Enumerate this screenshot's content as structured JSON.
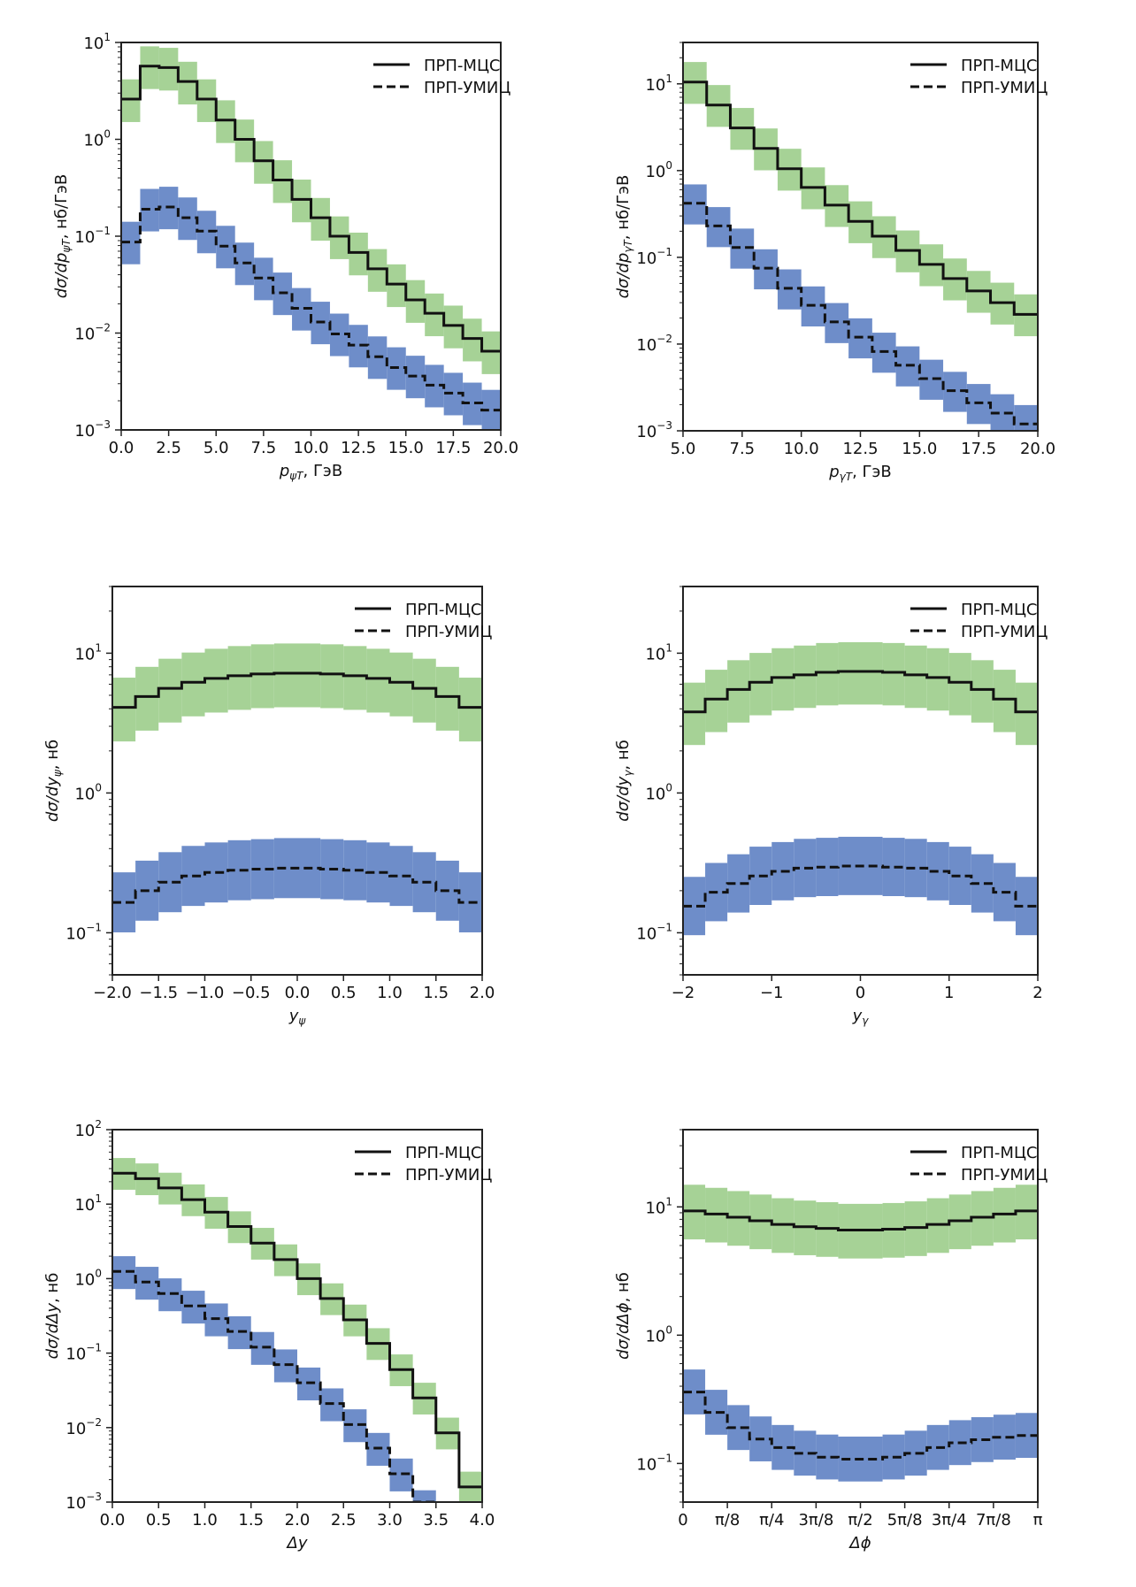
{
  "figure": {
    "legend_labels": [
      "ПРП-МЦС",
      "ПРП-УМИЦ"
    ],
    "colors": {
      "mcs_band": "#a6d296",
      "umic_band": "#6e8dc9",
      "line": "#111111"
    }
  },
  "chart_data": [
    {
      "id": "pt-psi",
      "type": "area",
      "subtype": "step-histogram-with-bands",
      "xlabel": "p_ψT, ГэВ",
      "xlabel_main": "p",
      "xlabel_sub": "ψT",
      "xlabel_unit": ", ГэВ",
      "ylabel": "dσ/dp_ψT, нб/ГэВ",
      "ylabel_main": "dσ/dp",
      "ylabel_sub": "ψT",
      "ylabel_unit": ", нб/ГэВ",
      "xlim": [
        0,
        20
      ],
      "ylim": [
        0.001,
        10
      ],
      "yscale": "log",
      "xticks": [
        0,
        2.5,
        5,
        7.5,
        10,
        12.5,
        15,
        17.5,
        20
      ],
      "xtick_labels": [
        "0.0",
        "2.5",
        "5.0",
        "7.5",
        "10.0",
        "12.5",
        "15.0",
        "17.5",
        "20.0"
      ],
      "yticks_exp": [
        -3,
        -2,
        -1,
        0,
        1
      ],
      "legend": "top-right",
      "bin_edges": [
        0,
        1,
        2,
        3,
        4,
        5,
        6,
        7,
        8,
        9,
        10,
        11,
        12,
        13,
        14,
        15,
        16,
        17,
        18,
        19,
        20
      ],
      "series": [
        {
          "name": "ПРП-МЦС",
          "style": "solid",
          "band": "green",
          "values": [
            2.6,
            5.7,
            5.5,
            3.95,
            2.6,
            1.58,
            1.0,
            0.6,
            0.38,
            0.24,
            0.155,
            0.1,
            0.068,
            0.046,
            0.032,
            0.022,
            0.016,
            0.012,
            0.0088,
            0.0065
          ],
          "band_upper_factor": 1.6,
          "band_lower_factor": 0.58
        },
        {
          "name": "ПРП-УМИЦ",
          "style": "dashed",
          "band": "blue",
          "values": [
            0.087,
            0.19,
            0.2,
            0.155,
            0.113,
            0.079,
            0.053,
            0.037,
            0.026,
            0.018,
            0.013,
            0.0098,
            0.0075,
            0.0057,
            0.0044,
            0.0036,
            0.0029,
            0.0024,
            0.0019,
            0.0016
          ],
          "band_upper_factor": 1.62,
          "band_lower_factor": 0.59
        }
      ]
    },
    {
      "id": "pt-gamma",
      "type": "area",
      "subtype": "step-histogram-with-bands",
      "xlabel": "p_γT, ГэВ",
      "xlabel_main": "p",
      "xlabel_sub": "γT",
      "xlabel_unit": ", ГэВ",
      "ylabel": "dσ/dp_γT, нб/ГэВ",
      "ylabel_main": "dσ/dp",
      "ylabel_sub": "γT",
      "ylabel_unit": ", нб/ГэВ",
      "xlim": [
        5,
        20
      ],
      "ylim": [
        0.001,
        30
      ],
      "yscale": "log",
      "xticks": [
        5,
        7.5,
        10,
        12.5,
        15,
        17.5,
        20
      ],
      "xtick_labels": [
        "5.0",
        "7.5",
        "10.0",
        "12.5",
        "15.0",
        "17.5",
        "20.0"
      ],
      "yticks_exp": [
        -3,
        -2,
        -1,
        0,
        1
      ],
      "legend": "top-right",
      "bin_edges": [
        5,
        6,
        7,
        8,
        9,
        10,
        11,
        12,
        13,
        14,
        15,
        16,
        17,
        18,
        19,
        20
      ],
      "series": [
        {
          "name": "ПРП-МЦС",
          "style": "solid",
          "band": "green",
          "values": [
            10.5,
            5.7,
            3.1,
            1.8,
            1.05,
            0.64,
            0.4,
            0.26,
            0.175,
            0.12,
            0.083,
            0.057,
            0.041,
            0.03,
            0.022
          ],
          "band_upper_factor": 1.7,
          "band_lower_factor": 0.56
        },
        {
          "name": "ПРП-УМИЦ",
          "style": "dashed",
          "band": "blue",
          "values": [
            0.42,
            0.23,
            0.13,
            0.075,
            0.044,
            0.028,
            0.018,
            0.012,
            0.0082,
            0.0057,
            0.004,
            0.0029,
            0.0021,
            0.0016,
            0.0012
          ],
          "band_upper_factor": 1.65,
          "band_lower_factor": 0.57
        }
      ]
    },
    {
      "id": "y-psi",
      "type": "area",
      "subtype": "step-histogram-with-bands",
      "xlabel": "y_ψ",
      "xlabel_main": "y",
      "xlabel_sub": "ψ",
      "xlabel_unit": "",
      "ylabel": "dσ/dy_ψ, нб",
      "ylabel_main": "dσ/dy",
      "ylabel_sub": "ψ",
      "ylabel_unit": ", нб",
      "xlim": [
        -2,
        2
      ],
      "ylim": [
        0.05,
        30
      ],
      "yscale": "log",
      "xticks": [
        -2,
        -1.5,
        -1,
        -0.5,
        0,
        0.5,
        1,
        1.5,
        2
      ],
      "xtick_labels": [
        "−2.0",
        "−1.5",
        "−1.0",
        "−0.5",
        "0.0",
        "0.5",
        "1.0",
        "1.5",
        "2.0"
      ],
      "yticks_exp": [
        -1,
        0,
        1
      ],
      "legend": "top-right",
      "bin_edges": [
        -2,
        -1.75,
        -1.5,
        -1.25,
        -1,
        -0.75,
        -0.5,
        -0.25,
        0,
        0.25,
        0.5,
        0.75,
        1,
        1.25,
        1.5,
        1.75,
        2
      ],
      "series": [
        {
          "name": "ПРП-МЦС",
          "style": "solid",
          "band": "green",
          "values": [
            4.1,
            4.9,
            5.6,
            6.2,
            6.6,
            6.9,
            7.1,
            7.2,
            7.2,
            7.1,
            6.9,
            6.6,
            6.2,
            5.6,
            4.9,
            4.1
          ],
          "band_upper_factor": 1.63,
          "band_lower_factor": 0.57
        },
        {
          "name": "ПРП-УМИЦ",
          "style": "dashed",
          "band": "blue",
          "values": [
            0.165,
            0.2,
            0.23,
            0.255,
            0.27,
            0.28,
            0.285,
            0.29,
            0.29,
            0.285,
            0.28,
            0.27,
            0.255,
            0.23,
            0.2,
            0.165
          ],
          "band_upper_factor": 1.64,
          "band_lower_factor": 0.61
        }
      ]
    },
    {
      "id": "y-gamma",
      "type": "area",
      "subtype": "step-histogram-with-bands",
      "xlabel": "y_γ",
      "xlabel_main": "y",
      "xlabel_sub": "γ",
      "xlabel_unit": "",
      "ylabel": "dσ/dy_γ, нб",
      "ylabel_main": "dσ/dy",
      "ylabel_sub": "γ",
      "ylabel_unit": ", нб",
      "xlim": [
        -2,
        2
      ],
      "ylim": [
        0.05,
        30
      ],
      "yscale": "log",
      "xticks": [
        -2,
        -1,
        0,
        1,
        2
      ],
      "xtick_labels": [
        "−2",
        "−1",
        "0",
        "1",
        "2"
      ],
      "yticks_exp": [
        -1,
        0,
        1
      ],
      "legend": "top-right",
      "bin_edges": [
        -2,
        -1.75,
        -1.5,
        -1.25,
        -1,
        -0.75,
        -0.5,
        -0.25,
        0,
        0.25,
        0.5,
        0.75,
        1,
        1.25,
        1.5,
        1.75,
        2
      ],
      "series": [
        {
          "name": "ПРП-МЦС",
          "style": "solid",
          "band": "green",
          "values": [
            3.8,
            4.7,
            5.5,
            6.2,
            6.7,
            7.0,
            7.3,
            7.4,
            7.4,
            7.3,
            7.0,
            6.7,
            6.2,
            5.5,
            4.7,
            3.8
          ],
          "band_upper_factor": 1.62,
          "band_lower_factor": 0.58
        },
        {
          "name": "ПРП-УМИЦ",
          "style": "dashed",
          "band": "blue",
          "values": [
            0.155,
            0.195,
            0.225,
            0.255,
            0.275,
            0.29,
            0.295,
            0.3,
            0.3,
            0.295,
            0.29,
            0.275,
            0.255,
            0.225,
            0.195,
            0.155
          ],
          "band_upper_factor": 1.62,
          "band_lower_factor": 0.62
        }
      ]
    },
    {
      "id": "delta-y",
      "type": "area",
      "subtype": "step-histogram-with-bands",
      "xlabel": "Δy",
      "xlabel_main": "Δy",
      "xlabel_sub": "",
      "xlabel_unit": "",
      "ylabel": "dσ/dΔy, нб",
      "ylabel_main": "dσ/dΔy",
      "ylabel_sub": "",
      "ylabel_unit": ", нб",
      "xlim": [
        0,
        4
      ],
      "ylim": [
        0.001,
        100
      ],
      "yscale": "log",
      "xticks": [
        0,
        0.5,
        1,
        1.5,
        2,
        2.5,
        3,
        3.5,
        4
      ],
      "xtick_labels": [
        "0.0",
        "0.5",
        "1.0",
        "1.5",
        "2.0",
        "2.5",
        "3.0",
        "3.5",
        "4.0"
      ],
      "yticks_exp": [
        -3,
        -2,
        -1,
        0,
        1,
        2
      ],
      "legend": "top-right",
      "bin_edges": [
        0,
        0.25,
        0.5,
        0.75,
        1,
        1.25,
        1.5,
        1.75,
        2,
        2.25,
        2.5,
        2.75,
        3,
        3.25,
        3.5,
        3.75,
        4
      ],
      "series": [
        {
          "name": "ПРП-МЦС",
          "style": "solid",
          "band": "green",
          "values": [
            26,
            22,
            16.5,
            11.5,
            7.8,
            5.0,
            3.0,
            1.8,
            1.0,
            0.54,
            0.28,
            0.135,
            0.06,
            0.025,
            0.0085,
            0.0016
          ],
          "band_upper_factor": 1.6,
          "band_lower_factor": 0.6
        },
        {
          "name": "ПРП-УМИЦ",
          "style": "dashed",
          "band": "blue",
          "values": [
            1.25,
            0.9,
            0.63,
            0.43,
            0.29,
            0.195,
            0.12,
            0.07,
            0.04,
            0.021,
            0.011,
            0.0053,
            0.0024,
            0.0009,
            null,
            null
          ],
          "band_upper_factor": 1.6,
          "band_lower_factor": 0.58
        }
      ]
    },
    {
      "id": "delta-phi",
      "type": "area",
      "subtype": "step-histogram-with-bands",
      "xlabel": "Δϕ",
      "xlabel_main": "Δϕ",
      "xlabel_sub": "",
      "xlabel_unit": "",
      "ylabel": "dσ/dΔϕ, нб",
      "ylabel_main": "dσ/dΔϕ",
      "ylabel_sub": "",
      "ylabel_unit": ", нб",
      "xlim": [
        0,
        3.14159
      ],
      "ylim": [
        0.05,
        40
      ],
      "yscale": "log",
      "xticks": [
        0,
        0.3927,
        0.7854,
        1.1781,
        1.5708,
        1.9635,
        2.3562,
        2.7489,
        3.14159
      ],
      "xtick_labels": [
        "0",
        "π/8",
        "π/4",
        "3π/8",
        "π/2",
        "5π/8",
        "3π/4",
        "7π/8",
        "π"
      ],
      "yticks_exp": [
        -1,
        0,
        1
      ],
      "legend": "top-right",
      "bin_count": 16,
      "series": [
        {
          "name": "ПРП-МЦС",
          "style": "solid",
          "band": "green",
          "values": [
            9.3,
            8.8,
            8.3,
            7.8,
            7.3,
            7.0,
            6.8,
            6.6,
            6.6,
            6.7,
            6.9,
            7.3,
            7.8,
            8.3,
            8.8,
            9.3
          ],
          "band_upper_factor": 1.6,
          "band_lower_factor": 0.6
        },
        {
          "name": "ПРП-УМИЦ",
          "style": "dashed",
          "band": "blue",
          "values": [
            0.36,
            0.25,
            0.19,
            0.155,
            0.133,
            0.12,
            0.112,
            0.108,
            0.108,
            0.112,
            0.12,
            0.133,
            0.145,
            0.153,
            0.16,
            0.165
          ],
          "band_upper_factor": 1.5,
          "band_lower_factor": 0.67
        }
      ]
    }
  ]
}
